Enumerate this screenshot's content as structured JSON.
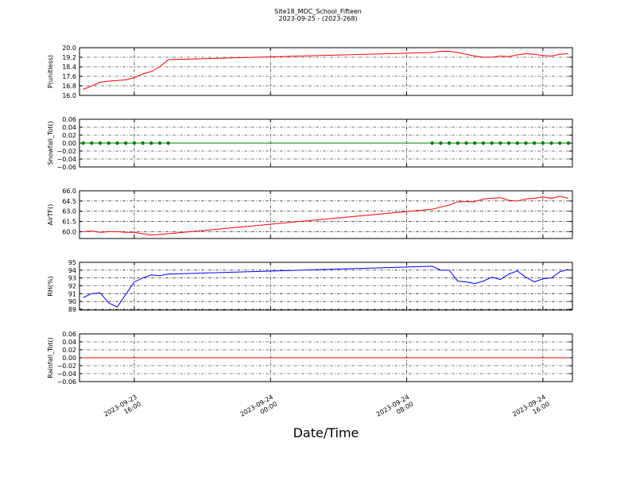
{
  "title": "Site18_MDC_School_Fifteen",
  "subtitle": "2023-09-25 - (2023-268)",
  "xlabel": "Date/Time",
  "xlim": [
    "2023-09-23 12:47",
    "2023-09-24 17:44"
  ],
  "xticks": [
    "2023-09-23 16:00",
    "2023-09-24 00:00",
    "2023-09-24 08:00",
    "2023-09-24 16:00"
  ],
  "grid": true,
  "x": [
    "2023-09-23 13:00",
    "2023-09-23 13:30",
    "2023-09-23 14:00",
    "2023-09-23 14:30",
    "2023-09-23 15:00",
    "2023-09-23 15:30",
    "2023-09-23 16:00",
    "2023-09-23 16:30",
    "2023-09-23 17:00",
    "2023-09-23 17:30",
    "2023-09-23 18:00",
    "2023-09-24 09:30",
    "2023-09-24 10:00",
    "2023-09-24 10:30",
    "2023-09-24 11:00",
    "2023-09-24 11:30",
    "2023-09-24 12:00",
    "2023-09-24 12:30",
    "2023-09-24 13:00",
    "2023-09-24 13:30",
    "2023-09-24 14:00",
    "2023-09-24 14:30",
    "2023-09-24 15:00",
    "2023-09-24 15:30",
    "2023-09-24 16:00",
    "2023-09-24 16:30",
    "2023-09-24 17:00",
    "2023-09-24 17:30"
  ],
  "chart_data": [
    {
      "type": "line",
      "ylabel": "P(unitless)",
      "ylim": [
        16,
        20
      ],
      "yticks": [
        {
          "value": 16,
          "label": "16.0"
        },
        {
          "value": 16.8,
          "label": "16.8"
        },
        {
          "value": 17.6,
          "label": "17.6"
        },
        {
          "value": 18.4,
          "label": "18.4"
        },
        {
          "value": 19.2,
          "label": "19.2"
        },
        {
          "value": 20,
          "label": "20.0"
        }
      ],
      "series": [
        {
          "color": "#ff0000",
          "values": [
            16.5,
            16.8,
            17.1,
            17.2,
            17.25,
            17.3,
            17.5,
            17.8,
            18.0,
            18.4,
            19.0,
            19.6,
            19.7,
            19.7,
            19.6,
            19.45,
            19.3,
            19.2,
            19.2,
            19.3,
            19.25,
            19.4,
            19.5,
            19.45,
            19.35,
            19.3,
            19.45,
            19.5
          ]
        }
      ]
    },
    {
      "type": "line",
      "ylabel": "Snowfall_Tot()",
      "ylim": [
        -0.06,
        0.06
      ],
      "marker": true,
      "yticks": [
        {
          "value": -0.06,
          "label": "−0.06"
        },
        {
          "value": -0.04,
          "label": "−0.04"
        },
        {
          "value": -0.02,
          "label": "−0.02"
        },
        {
          "value": 0,
          "label": "0.00"
        },
        0.02,
        0.04,
        0.06
      ],
      "series": [
        {
          "color": "#008000",
          "values": [
            0,
            0,
            0,
            0,
            0,
            0,
            0,
            0,
            0,
            0,
            0,
            0,
            0,
            0,
            0,
            0,
            0,
            0,
            0,
            0,
            0,
            0,
            0,
            0,
            0,
            0,
            0,
            0
          ]
        }
      ]
    },
    {
      "type": "line",
      "ylabel": "AirTF()",
      "ylim": [
        59,
        66
      ],
      "yticks": [
        {
          "value": 60,
          "label": "60.0"
        },
        61.5,
        {
          "value": 63,
          "label": "63.0"
        },
        64.5,
        {
          "value": 66,
          "label": "66.0"
        }
      ],
      "series": [
        {
          "color": "#ff0000",
          "values": [
            60.0,
            60.1,
            59.9,
            60.0,
            60.0,
            59.9,
            59.9,
            59.7,
            59.5,
            59.6,
            59.7,
            63.3,
            63.6,
            63.9,
            64.4,
            64.4,
            64.4,
            64.8,
            64.9,
            65.0,
            64.6,
            64.5,
            64.8,
            64.9,
            65.1,
            64.9,
            65.2,
            64.9
          ]
        }
      ]
    },
    {
      "type": "line",
      "ylabel": "RH(%)",
      "ylim": [
        88.9,
        95
      ],
      "yticks": [
        89,
        90,
        91,
        92,
        93,
        94,
        95
      ],
      "series": [
        {
          "color": "#0000ff",
          "values": [
            90.5,
            91.0,
            91.1,
            89.8,
            89.3,
            90.9,
            92.5,
            93.0,
            93.4,
            93.3,
            93.5,
            94.5,
            94.0,
            94.0,
            92.6,
            92.5,
            92.3,
            92.6,
            93.1,
            92.8,
            93.5,
            93.9,
            93.1,
            92.5,
            92.9,
            93.0,
            93.8,
            94.1
          ]
        }
      ]
    },
    {
      "type": "line",
      "ylabel": "Rainfall_Tot()",
      "ylim": [
        -0.06,
        0.06
      ],
      "yticks": [
        {
          "value": -0.06,
          "label": "−0.06"
        },
        {
          "value": -0.04,
          "label": "−0.04"
        },
        {
          "value": -0.02,
          "label": "−0.02"
        },
        {
          "value": 0,
          "label": "0.00"
        },
        0.02,
        0.04,
        0.06
      ],
      "series": [
        {
          "color": "#ff0000",
          "values": [
            0,
            0,
            0,
            0,
            0,
            0,
            0,
            0,
            0,
            0,
            0,
            0,
            0,
            0,
            0,
            0,
            0,
            0,
            0,
            0,
            0,
            0,
            0,
            0,
            0,
            0,
            0,
            0
          ]
        }
      ]
    }
  ]
}
